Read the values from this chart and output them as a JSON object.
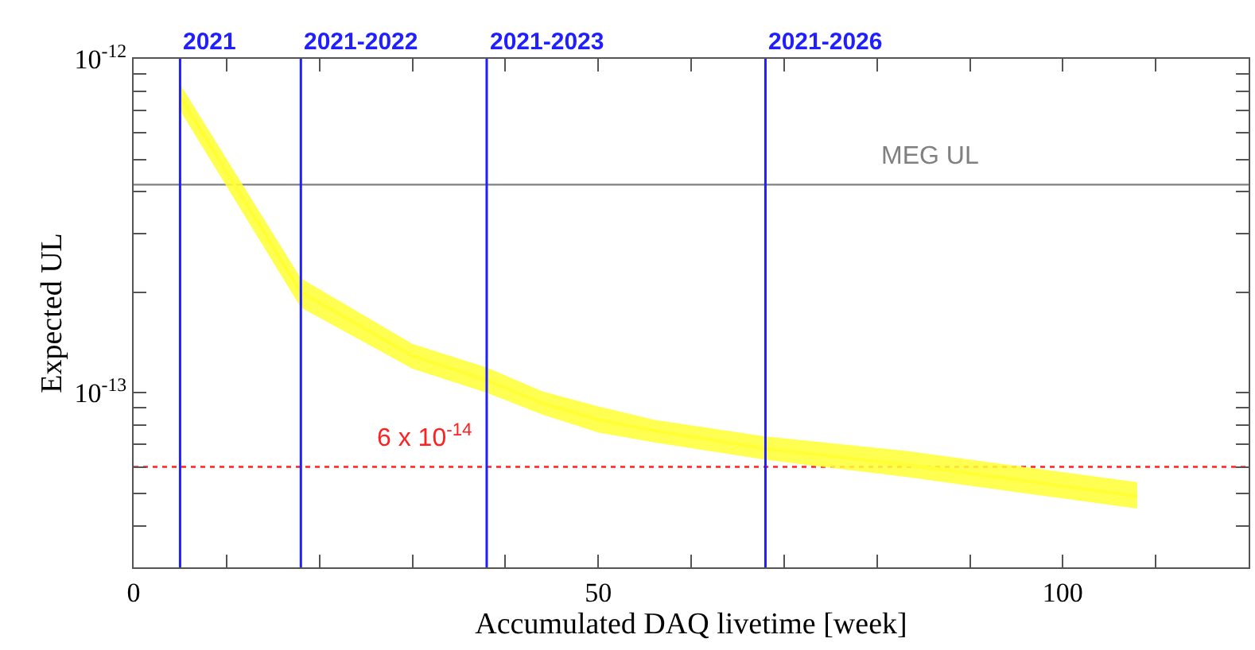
{
  "chart_data": {
    "type": "line",
    "xlabel": "Accumulated DAQ livetime [week]",
    "ylabel": "Expected UL",
    "log": "y",
    "xlim": [
      0,
      120
    ],
    "xticks": [
      {
        "value": 0,
        "label": "0"
      },
      {
        "value": 10,
        "label": null
      },
      {
        "value": 20,
        "label": null
      },
      {
        "value": 30,
        "label": null
      },
      {
        "value": 40,
        "label": null
      },
      {
        "value": 50,
        "label": "50"
      },
      {
        "value": 60,
        "label": null
      },
      {
        "value": 70,
        "label": null
      },
      {
        "value": 80,
        "label": null
      },
      {
        "value": 90,
        "label": null
      },
      {
        "value": 100,
        "label": "100"
      },
      {
        "value": 110,
        "label": null
      }
    ],
    "ylim": [
      3e-14,
      1e-12
    ],
    "yticks": [
      {
        "value": 3e-14,
        "label": null
      },
      {
        "value": 4e-14,
        "label": null
      },
      {
        "value": 5e-14,
        "label": null
      },
      {
        "value": 6e-14,
        "label": null
      },
      {
        "value": 7e-14,
        "label": null
      },
      {
        "value": 8e-14,
        "label": null
      },
      {
        "value": 9e-14,
        "label": null
      },
      {
        "value": 1e-13,
        "label": "10$^{-13}$"
      },
      {
        "value": 2e-13,
        "label": null
      },
      {
        "value": 3e-13,
        "label": null
      },
      {
        "value": 4e-13,
        "label": null
      },
      {
        "value": 5e-13,
        "label": null
      },
      {
        "value": 6e-13,
        "label": null
      },
      {
        "value": 7e-13,
        "label": null
      },
      {
        "value": 8e-13,
        "label": null
      },
      {
        "value": 9e-13,
        "label": null
      },
      {
        "value": 1e-12,
        "label": "10$^{-12}$"
      }
    ],
    "marker": "none",
    "series": [
      {
        "color": "#ffff33",
        "x": [
          5,
          18,
          30,
          38,
          44,
          50,
          56,
          68,
          83,
          108
        ],
        "values": [
          7.7e-13,
          2e-13,
          1.29e-13,
          1.09e-13,
          9.3e-14,
          8.3e-14,
          7.7e-14,
          6.8e-14,
          6.1e-14,
          4.9e-14
        ],
        "lower": [
          7e-13,
          1.8e-13,
          1.18e-13,
          1e-13,
          8.6e-14,
          7.6e-14,
          7.1e-14,
          6.3e-14,
          5.6e-14,
          4.5e-14
        ],
        "upper": [
          8.4e-13,
          2.2e-13,
          1.4e-13,
          1.19e-13,
          1.01e-13,
          9.1e-14,
          8.3e-14,
          7.4e-14,
          6.7e-14,
          5.4e-14
        ]
      }
    ],
    "ref_lines": [
      {
        "axis": "x",
        "value": 5,
        "color": "#2020ff"
      },
      {
        "axis": "x",
        "value": 18,
        "color": "#2020ff"
      },
      {
        "axis": "x",
        "value": 38,
        "color": "#2020ff"
      },
      {
        "axis": "x",
        "value": 68,
        "color": "#2020ff"
      },
      {
        "axis": "y",
        "value": 4.2e-13,
        "label": "MEG UL",
        "color": "#808080"
      },
      {
        "axis": "y",
        "value": 6e-14,
        "label": "6 x 10$^{-14}$",
        "color": "#ff2020",
        "line_style": "dotted"
      }
    ],
    "annotations": [
      "2021",
      "2021-2022",
      "2021-2023",
      "2021-2026"
    ]
  }
}
